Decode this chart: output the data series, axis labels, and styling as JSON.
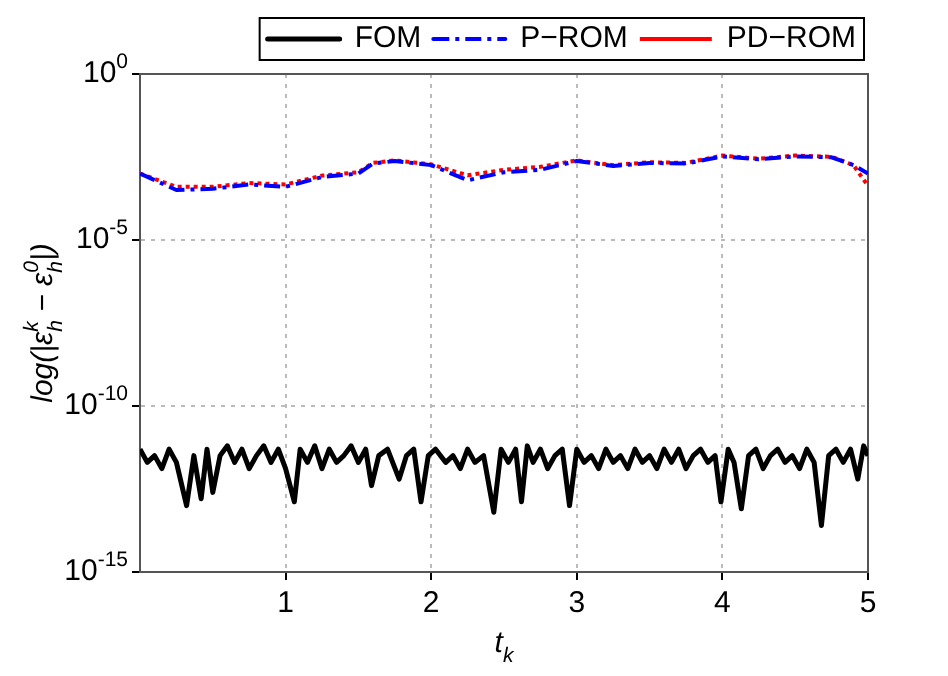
{
  "chart_data": {
    "type": "line",
    "xlabel": "t$_{k}$",
    "ylabel": "log(|ε$_{h}$$^{k}$ − ε$_{h}$$^{0}$|)",
    "log": "y",
    "grid": true,
    "legend": "top right",
    "marker": "none",
    "xlim": [
      0,
      5
    ],
    "xticks": [
      1,
      2,
      3,
      4,
      5
    ],
    "ylim": [
      1e-15,
      1
    ],
    "yticks": [
      {
        "value": 1e-15,
        "label": "10$^{-15}$"
      },
      {
        "value": 1e-10,
        "label": "10$^{-10}$"
      },
      {
        "value": 1e-05,
        "label": "10$^{-5}$"
      },
      {
        "value": 1,
        "label": "10$^{0}$"
      }
    ],
    "series": [
      {
        "name": "FOM",
        "color": "#000000",
        "line_style": "solid",
        "x": [
          0,
          0.05,
          0.1,
          0.15,
          0.2,
          0.25,
          0.32,
          0.37,
          0.42,
          0.46,
          0.5,
          0.55,
          0.6,
          0.65,
          0.7,
          0.75,
          0.8,
          0.85,
          0.9,
          0.95,
          1.0,
          1.06,
          1.1,
          1.15,
          1.2,
          1.25,
          1.3,
          1.35,
          1.4,
          1.45,
          1.5,
          1.55,
          1.59,
          1.64,
          1.7,
          1.78,
          1.83,
          1.88,
          1.93,
          1.98,
          2.03,
          2.1,
          2.15,
          2.2,
          2.25,
          2.3,
          2.36,
          2.43,
          2.48,
          2.53,
          2.58,
          2.62,
          2.66,
          2.7,
          2.75,
          2.8,
          2.85,
          2.9,
          2.95,
          3.0,
          3.05,
          3.1,
          3.15,
          3.2,
          3.25,
          3.3,
          3.35,
          3.4,
          3.45,
          3.5,
          3.55,
          3.6,
          3.65,
          3.7,
          3.75,
          3.8,
          3.85,
          3.9,
          3.95,
          3.99,
          4.04,
          4.08,
          4.13,
          4.18,
          4.23,
          4.28,
          4.33,
          4.38,
          4.43,
          4.48,
          4.53,
          4.58,
          4.63,
          4.68,
          4.73,
          4.78,
          4.83,
          4.88,
          4.93,
          4.97,
          5.0
        ],
        "values": [
          5e-12,
          2e-12,
          3.2e-12,
          1.3e-12,
          5e-12,
          2e-12,
          1e-13,
          3.2e-12,
          1.6e-13,
          5e-12,
          2.5e-13,
          3.2e-12,
          6.3e-12,
          2e-12,
          5e-12,
          1.3e-12,
          3.2e-12,
          6.3e-12,
          2e-12,
          5e-12,
          1.3e-12,
          1.3e-13,
          5e-12,
          2e-12,
          6.3e-12,
          1.3e-12,
          5e-12,
          2e-12,
          3.2e-12,
          6.3e-12,
          2e-12,
          5e-12,
          4e-13,
          3.2e-12,
          5e-12,
          6.3e-13,
          3.2e-12,
          5e-12,
          1.3e-13,
          3.2e-12,
          5e-12,
          2e-12,
          3.2e-12,
          1.3e-12,
          5e-12,
          2e-12,
          3.2e-12,
          6.3e-14,
          5e-12,
          2e-12,
          5e-12,
          1.3e-13,
          6.3e-12,
          2e-12,
          5e-12,
          1.3e-12,
          3.2e-12,
          5e-12,
          1e-13,
          5e-12,
          2e-12,
          3.2e-12,
          1.3e-12,
          5e-12,
          2e-12,
          3.2e-12,
          1.3e-12,
          5e-12,
          2e-12,
          3.2e-12,
          1.3e-12,
          5e-12,
          2e-12,
          5e-12,
          1.3e-12,
          3.2e-12,
          5e-12,
          2e-12,
          3.2e-12,
          1.3e-13,
          5e-12,
          2e-12,
          8e-14,
          3.2e-12,
          5e-12,
          1.3e-12,
          3.2e-12,
          5e-12,
          2e-12,
          3.2e-12,
          1.3e-12,
          5e-12,
          2e-12,
          2.5e-14,
          3.2e-12,
          5e-12,
          2e-12,
          5e-12,
          6.3e-13,
          6.3e-12,
          3.2e-12
        ]
      },
      {
        "name": "P−ROM",
        "color": "#0000ff",
        "line_style": "dashed",
        "x": [
          0,
          0.25,
          0.5,
          0.75,
          1,
          1.25,
          1.5,
          1.6,
          1.75,
          2,
          2.25,
          2.5,
          2.75,
          3,
          3.25,
          3.5,
          3.75,
          4,
          4.25,
          4.5,
          4.75,
          4.9,
          5
        ],
        "values": [
          0.001,
          0.00032,
          0.00035,
          0.00047,
          0.0004,
          0.00079,
          0.001,
          0.002,
          0.0024,
          0.0018,
          0.00063,
          0.0011,
          0.0013,
          0.0024,
          0.0017,
          0.0021,
          0.002,
          0.0033,
          0.0027,
          0.0033,
          0.0031,
          0.0018,
          0.001
        ]
      },
      {
        "name": "PD−ROM",
        "color": "#ff0000",
        "line_style": "dotted",
        "x": [
          0,
          0.25,
          0.5,
          0.75,
          1,
          1.25,
          1.5,
          1.6,
          1.75,
          2,
          2.25,
          2.5,
          2.75,
          3,
          3.25,
          3.5,
          3.75,
          4,
          4.25,
          4.5,
          4.75,
          4.9,
          5
        ],
        "values": [
          0.001,
          0.0004,
          0.0004,
          0.00052,
          0.00047,
          0.00087,
          0.0011,
          0.0021,
          0.0025,
          0.0019,
          0.00089,
          0.0013,
          0.0016,
          0.0025,
          0.0018,
          0.0022,
          0.0021,
          0.0035,
          0.0028,
          0.0035,
          0.0032,
          0.0018,
          0.00043
        ]
      }
    ]
  }
}
